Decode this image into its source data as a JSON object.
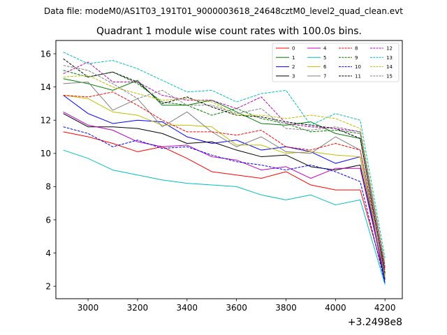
{
  "header": {
    "data_file": "Data file: modeM0/AS1T03_191T01_9000003618_24648cztM0_level2_quad_clean.evt"
  },
  "chart_data": {
    "type": "line",
    "title": "Quadrant 1 module wise count rates with 100.0s bins.",
    "xlabel": "",
    "ylabel": "",
    "x_offset_label": "+3.2498e8",
    "xlim": [
      2870,
      4270
    ],
    "ylim": [
      1.25,
      16.8
    ],
    "xticks": [
      3000,
      3200,
      3400,
      3600,
      3800,
      4000,
      4200
    ],
    "xtick_labels": [
      "3000",
      "3200",
      "3400",
      "3600",
      "3800",
      "4000",
      "4200"
    ],
    "yticks": [
      2,
      4,
      6,
      8,
      10,
      12,
      14,
      16
    ],
    "ytick_labels": [
      "2",
      "4",
      "6",
      "8",
      "10",
      "12",
      "14",
      "16"
    ],
    "grid": false,
    "legend_position": "top-right",
    "legend_columns": 4,
    "x": [
      2900,
      3000,
      3100,
      3200,
      3300,
      3400,
      3500,
      3600,
      3700,
      3800,
      3900,
      4000,
      4100,
      4200
    ],
    "series": [
      {
        "name": "0",
        "color": "#ff0000",
        "dash": "solid",
        "values": [
          11.3,
          11.0,
          10.6,
          10.1,
          10.4,
          9.7,
          8.9,
          8.7,
          8.5,
          8.9,
          8.1,
          7.8,
          7.8,
          2.5
        ]
      },
      {
        "name": "1",
        "color": "#008000",
        "dash": "solid",
        "values": [
          14.5,
          14.2,
          13.8,
          14.4,
          12.9,
          12.9,
          13.2,
          12.5,
          11.8,
          11.7,
          11.9,
          11.2,
          10.9,
          2.7
        ]
      },
      {
        "name": "2",
        "color": "#0000ff",
        "dash": "solid",
        "values": [
          13.5,
          12.4,
          11.8,
          12.0,
          11.9,
          11.0,
          10.6,
          10.8,
          10.2,
          10.4,
          10.1,
          9.4,
          9.8,
          2.2
        ]
      },
      {
        "name": "3",
        "color": "#000000",
        "dash": "solid",
        "values": [
          12.4,
          11.6,
          11.6,
          11.5,
          11.2,
          10.6,
          10.7,
          10.2,
          9.8,
          9.9,
          9.2,
          9.0,
          9.3,
          2.4
        ]
      },
      {
        "name": "4",
        "color": "#bf00bf",
        "dash": "solid",
        "values": [
          12.5,
          11.7,
          11.4,
          10.7,
          10.4,
          10.5,
          9.8,
          9.6,
          9.0,
          9.2,
          8.5,
          9.1,
          9.1,
          2.5
        ]
      },
      {
        "name": "5",
        "color": "#00bfbf",
        "dash": "solid",
        "values": [
          10.2,
          9.7,
          9.0,
          8.7,
          8.4,
          8.2,
          8.1,
          8.0,
          7.5,
          7.2,
          7.5,
          6.9,
          7.2,
          2.1
        ]
      },
      {
        "name": "6",
        "color": "#bfbf00",
        "dash": "solid",
        "values": [
          13.5,
          13.3,
          12.5,
          12.3,
          11.7,
          11.7,
          11.6,
          10.5,
          10.5,
          10.0,
          10.1,
          9.9,
          9.8,
          2.6
        ]
      },
      {
        "name": "7",
        "color": "#808080",
        "dash": "solid",
        "values": [
          14.2,
          14.3,
          12.6,
          13.3,
          11.6,
          12.5,
          11.3,
          10.4,
          11.0,
          10.1,
          10.0,
          11.0,
          10.2,
          2.5
        ]
      },
      {
        "name": "8",
        "color": "#ff0000",
        "dash": "dashed",
        "values": [
          13.5,
          13.4,
          13.7,
          12.9,
          12.0,
          11.3,
          11.3,
          11.1,
          11.4,
          10.4,
          10.2,
          10.6,
          10.2,
          3.0
        ]
      },
      {
        "name": "9",
        "color": "#008000",
        "dash": "dashed",
        "values": [
          15.0,
          14.6,
          14.9,
          14.2,
          13.1,
          12.9,
          12.3,
          12.7,
          12.1,
          11.8,
          11.3,
          11.4,
          11.2,
          3.2
        ]
      },
      {
        "name": "10",
        "color": "#0000ff",
        "dash": "dashed",
        "values": [
          11.6,
          11.2,
          10.4,
          10.8,
          10.3,
          10.4,
          9.9,
          9.5,
          9.3,
          9.0,
          9.3,
          8.9,
          8.3,
          2.2
        ]
      },
      {
        "name": "11",
        "color": "#000000",
        "dash": "dashed",
        "values": [
          15.7,
          14.6,
          14.9,
          14.3,
          13.0,
          13.4,
          12.8,
          12.3,
          12.2,
          11.9,
          11.7,
          11.5,
          10.9,
          2.8
        ]
      },
      {
        "name": "12",
        "color": "#bf00bf",
        "dash": "dashed",
        "values": [
          14.8,
          15.5,
          14.3,
          14.3,
          13.5,
          13.2,
          13.2,
          12.7,
          13.4,
          11.8,
          11.6,
          11.5,
          11.3,
          3.1
        ]
      },
      {
        "name": "13",
        "color": "#00bfbf",
        "dash": "dashed",
        "values": [
          16.1,
          15.4,
          15.6,
          15.1,
          14.4,
          13.7,
          13.8,
          13.1,
          13.6,
          13.8,
          11.7,
          12.4,
          12.0,
          3.7
        ]
      },
      {
        "name": "14",
        "color": "#bfbf00",
        "dash": "dashed",
        "values": [
          14.6,
          14.7,
          14.0,
          13.6,
          13.2,
          13.3,
          13.1,
          12.3,
          12.3,
          12.1,
          12.3,
          12.1,
          11.5,
          3.4
        ]
      },
      {
        "name": "15",
        "color": "#808080",
        "dash": "dashed",
        "values": [
          15.3,
          15.0,
          14.2,
          13.3,
          13.8,
          12.9,
          12.9,
          12.4,
          12.7,
          11.5,
          11.4,
          11.6,
          11.3,
          3.3
        ]
      }
    ]
  }
}
